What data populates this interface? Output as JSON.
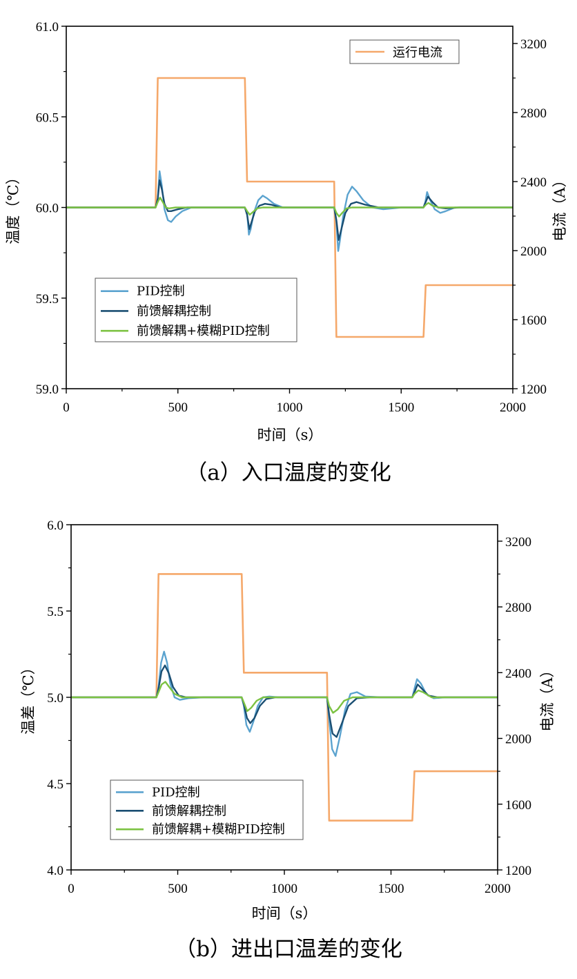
{
  "chart_data": [
    {
      "type": "line",
      "caption": "（a）入口温度的变化",
      "xlabel": "时间（s）",
      "ylabel": "温度（℃）",
      "y2label": "电流（A）",
      "xlim": [
        0,
        2000
      ],
      "ylim": [
        59.0,
        61.0
      ],
      "y2lim": [
        1200,
        3300
      ],
      "xticks": [
        0,
        500,
        1000,
        1500,
        2000
      ],
      "yticks": [
        59.0,
        59.5,
        60.0,
        60.5,
        61.0
      ],
      "y2ticks": [
        1200,
        1600,
        2000,
        2400,
        2800,
        3200
      ],
      "xtick_labels": [
        "0",
        "500",
        "1000",
        "1500",
        "2000"
      ],
      "ytick_labels": [
        "59.0",
        "59.5",
        "60.0",
        "60.5",
        "61.0"
      ],
      "y2tick_labels": [
        "1200",
        "1600",
        "2000",
        "2400",
        "2800",
        "3200"
      ],
      "grid": false,
      "legend_left": {
        "position": "lower-left",
        "entries": [
          "PID控制",
          "前馈解耦控制",
          "前馈解耦+模糊PID控制"
        ]
      },
      "legend_right": {
        "position": "top-right",
        "entries": [
          "运行电流"
        ]
      },
      "series": [
        {
          "name": "运行电流",
          "axis": "right",
          "color": "#f5a86a",
          "x": [
            0,
            400,
            410,
            800,
            810,
            1200,
            1210,
            1600,
            1610,
            2000
          ],
          "y": [
            2250,
            2250,
            3000,
            3000,
            2400,
            2400,
            1500,
            1500,
            1800,
            1800
          ]
        },
        {
          "name": "PID控制",
          "axis": "left",
          "color": "#5ba3cf",
          "x": [
            0,
            400,
            410,
            418,
            428,
            440,
            455,
            470,
            490,
            520,
            560,
            620,
            700,
            800,
            810,
            818,
            826,
            840,
            860,
            880,
            900,
            930,
            970,
            1050,
            1200,
            1210,
            1218,
            1226,
            1240,
            1260,
            1280,
            1300,
            1330,
            1370,
            1420,
            1500,
            1600,
            1608,
            1616,
            1630,
            1650,
            1675,
            1700,
            1740,
            1800,
            2000
          ],
          "y": [
            60.0,
            60.0,
            60.05,
            60.2,
            60.12,
            59.99,
            59.93,
            59.92,
            59.95,
            59.98,
            60.0,
            60.0,
            60.0,
            60.0,
            59.97,
            59.85,
            59.88,
            59.97,
            60.04,
            60.065,
            60.05,
            60.02,
            60.0,
            60.0,
            60.0,
            59.92,
            59.76,
            59.82,
            59.95,
            60.07,
            60.115,
            60.09,
            60.04,
            60.0,
            59.99,
            60.0,
            60.0,
            60.03,
            60.085,
            60.04,
            59.99,
            59.97,
            59.98,
            60.0,
            60.0,
            60.0
          ]
        },
        {
          "name": "前馈解耦控制",
          "axis": "left",
          "color": "#1a4e72",
          "x": [
            0,
            400,
            410,
            418,
            428,
            440,
            455,
            470,
            500,
            540,
            600,
            800,
            810,
            820,
            830,
            845,
            865,
            890,
            920,
            960,
            1020,
            1200,
            1210,
            1220,
            1232,
            1250,
            1275,
            1300,
            1340,
            1400,
            1600,
            1610,
            1620,
            1640,
            1665,
            1700,
            1760,
            2000
          ],
          "y": [
            60.0,
            60.0,
            60.05,
            60.15,
            60.1,
            60.02,
            59.98,
            59.98,
            59.99,
            60.0,
            60.0,
            60.0,
            59.96,
            59.88,
            59.92,
            59.98,
            60.01,
            60.02,
            60.015,
            60.0,
            60.0,
            60.0,
            59.93,
            59.82,
            59.88,
            59.97,
            60.02,
            60.03,
            60.015,
            60.0,
            60.0,
            60.03,
            60.06,
            60.03,
            60.0,
            59.995,
            60.0,
            60.0
          ]
        },
        {
          "name": "前馈解耦+模糊PID控制",
          "axis": "left",
          "color": "#7cc242",
          "x": [
            0,
            400,
            410,
            420,
            432,
            445,
            460,
            490,
            540,
            800,
            810,
            822,
            836,
            855,
            880,
            1200,
            1210,
            1222,
            1236,
            1255,
            1280,
            1600,
            1610,
            1622,
            1640,
            1670,
            2000
          ],
          "y": [
            60.0,
            60.0,
            60.03,
            60.055,
            60.03,
            60.0,
            59.995,
            60.0,
            60.0,
            60.0,
            59.98,
            59.96,
            59.975,
            59.995,
            60.0,
            60.0,
            59.97,
            59.95,
            59.97,
            59.995,
            60.0,
            60.0,
            60.015,
            60.025,
            60.01,
            60.0,
            60.0
          ]
        }
      ]
    },
    {
      "type": "line",
      "caption": "（b）进出口温差的变化",
      "xlabel": "时间（s）",
      "ylabel": "温差（℃）",
      "y2label": "电流（A）",
      "xlim": [
        0,
        2000
      ],
      "ylim": [
        4.0,
        6.0
      ],
      "y2lim": [
        1200,
        3300
      ],
      "xticks": [
        0,
        500,
        1000,
        1500,
        2000
      ],
      "yticks": [
        4.0,
        4.5,
        5.0,
        5.5,
        6.0
      ],
      "y2ticks": [
        1200,
        1600,
        2000,
        2400,
        2800,
        3200
      ],
      "xtick_labels": [
        "0",
        "500",
        "1000",
        "1500",
        "2000"
      ],
      "ytick_labels": [
        "4.0",
        "4.5",
        "5.0",
        "5.5",
        "6.0"
      ],
      "y2tick_labels": [
        "1200",
        "1600",
        "2000",
        "2400",
        "2800",
        "3200"
      ],
      "grid": false,
      "legend_left": {
        "position": "lower-left",
        "entries": [
          "PID控制",
          "前馈解耦控制",
          "前馈解耦+模糊PID控制"
        ]
      },
      "series": [
        {
          "name": "运行电流",
          "axis": "right",
          "color": "#f5a86a",
          "x": [
            0,
            400,
            410,
            800,
            810,
            1200,
            1210,
            1600,
            1610,
            2000
          ],
          "y": [
            2250,
            2250,
            3000,
            3000,
            2400,
            2400,
            1500,
            1500,
            1800,
            1800
          ]
        },
        {
          "name": "PID控制",
          "axis": "left",
          "color": "#5ba3cf",
          "x": [
            0,
            400,
            410,
            422,
            436,
            450,
            465,
            485,
            510,
            550,
            620,
            800,
            810,
            822,
            838,
            855,
            875,
            900,
            930,
            970,
            1050,
            1200,
            1210,
            1224,
            1240,
            1260,
            1285,
            1310,
            1340,
            1380,
            1450,
            1600,
            1610,
            1622,
            1640,
            1665,
            1700,
            1750,
            2000
          ],
          "y": [
            5.0,
            5.0,
            5.06,
            5.2,
            5.265,
            5.2,
            5.08,
            5.0,
            4.985,
            4.995,
            5.0,
            5.0,
            4.95,
            4.84,
            4.8,
            4.86,
            4.95,
            5.0,
            5.005,
            5.0,
            5.0,
            5.0,
            4.87,
            4.7,
            4.66,
            4.77,
            4.93,
            5.02,
            5.03,
            5.005,
            5.0,
            5.0,
            5.05,
            5.105,
            5.08,
            5.02,
            4.995,
            5.0,
            5.0
          ]
        },
        {
          "name": "前馈解耦控制",
          "axis": "left",
          "color": "#1a4e72",
          "x": [
            0,
            400,
            410,
            424,
            440,
            458,
            478,
            505,
            540,
            600,
            800,
            810,
            825,
            840,
            860,
            885,
            915,
            960,
            1020,
            1200,
            1210,
            1226,
            1245,
            1270,
            1300,
            1340,
            1400,
            1600,
            1610,
            1625,
            1645,
            1675,
            1720,
            2000
          ],
          "y": [
            5.0,
            5.0,
            5.05,
            5.15,
            5.185,
            5.14,
            5.06,
            5.01,
            5.0,
            5.0,
            5.0,
            4.96,
            4.88,
            4.85,
            4.88,
            4.95,
            4.99,
            5.0,
            5.0,
            5.0,
            4.9,
            4.79,
            4.77,
            4.85,
            4.95,
            4.995,
            5.0,
            5.0,
            5.03,
            5.075,
            5.05,
            5.01,
            5.0,
            5.0
          ]
        },
        {
          "name": "前馈解耦+模糊PID控制",
          "axis": "left",
          "color": "#7cc242",
          "x": [
            0,
            400,
            410,
            425,
            442,
            460,
            485,
            520,
            580,
            800,
            810,
            826,
            845,
            870,
            900,
            950,
            1200,
            1210,
            1228,
            1250,
            1280,
            1320,
            1600,
            1610,
            1628,
            1650,
            1690,
            2000
          ],
          "y": [
            5.0,
            5.0,
            5.03,
            5.075,
            5.09,
            5.06,
            5.02,
            5.0,
            5.0,
            5.0,
            4.97,
            4.92,
            4.94,
            4.98,
            5.0,
            5.0,
            5.0,
            4.95,
            4.91,
            4.93,
            4.98,
            5.0,
            5.0,
            5.02,
            5.04,
            5.03,
            5.0,
            5.0
          ]
        }
      ]
    }
  ]
}
